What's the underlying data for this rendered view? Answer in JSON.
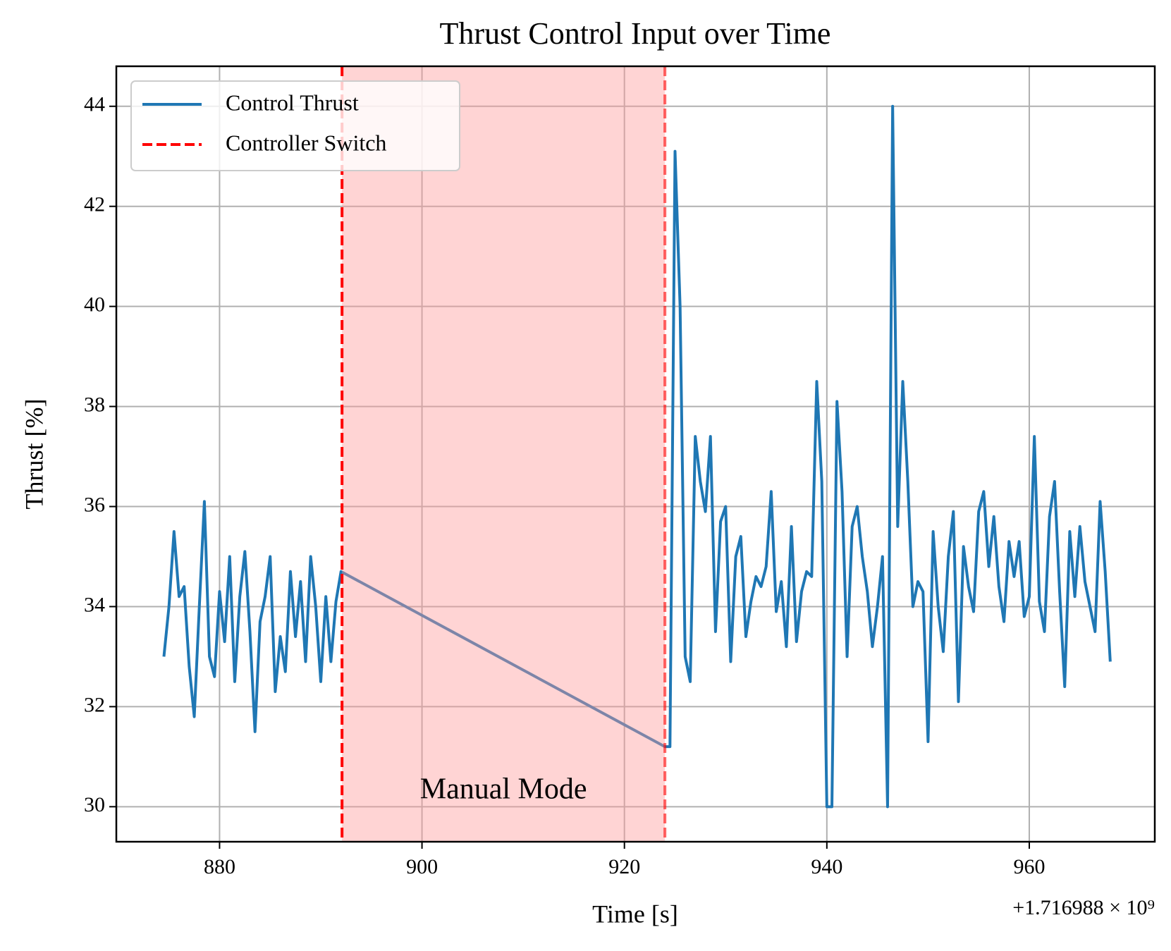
{
  "chart_data": {
    "type": "line",
    "title": "Thrust Control Input over Time",
    "xlabel": "Time [s]",
    "ylabel": "Thrust [%]",
    "offset_label": "+1.716988 × 10⁹",
    "x": [
      874.5,
      875,
      875.5,
      876,
      876.5,
      877,
      877.5,
      878,
      878.5,
      879,
      879.5,
      880,
      880.5,
      881,
      881.5,
      882,
      882.5,
      883,
      883.5,
      884,
      884.5,
      885,
      885.5,
      886,
      886.5,
      887,
      887.5,
      888,
      888.5,
      889,
      889.5,
      890,
      890.5,
      891,
      891.5,
      892,
      924,
      924.5,
      925,
      925.5,
      926,
      926.5,
      927,
      927.5,
      928,
      928.5,
      929,
      929.5,
      930,
      930.5,
      931,
      931.5,
      932,
      932.5,
      933,
      933.5,
      934,
      934.5,
      935,
      935.5,
      936,
      936.5,
      937,
      937.5,
      938,
      938.5,
      939,
      939.5,
      940,
      940.5,
      941,
      941.5,
      942,
      942.5,
      943,
      943.5,
      944,
      944.5,
      945,
      945.5,
      946,
      946.5,
      947,
      947.5,
      948,
      948.5,
      949,
      949.5,
      950,
      950.5,
      951,
      951.5,
      952,
      952.5,
      953,
      953.5,
      954,
      954.5,
      955,
      955.5,
      956,
      956.5,
      957,
      957.5,
      958,
      958.5,
      959,
      959.5,
      960,
      960.5,
      961,
      961.5,
      962,
      962.5,
      963,
      963.5,
      964,
      964.5,
      965,
      965.5,
      966,
      966.5,
      967,
      967.5,
      968
    ],
    "series": [
      {
        "name": "Control Thrust",
        "color": "#1f77b4",
        "values": [
          33.0,
          34.0,
          35.5,
          34.2,
          34.4,
          32.8,
          31.8,
          34.0,
          36.1,
          33.0,
          32.6,
          34.3,
          33.3,
          35.0,
          32.5,
          34.2,
          35.1,
          33.5,
          31.5,
          33.7,
          34.2,
          35.0,
          32.3,
          33.4,
          32.7,
          34.7,
          33.4,
          34.5,
          32.9,
          35.0,
          34.0,
          32.5,
          34.2,
          32.9,
          34.1,
          34.7,
          31.2,
          31.2,
          43.1,
          40.0,
          33.0,
          32.5,
          37.4,
          36.5,
          35.9,
          37.4,
          33.5,
          35.7,
          36.0,
          32.9,
          35.0,
          35.4,
          33.4,
          34.1,
          34.6,
          34.4,
          34.8,
          36.3,
          33.9,
          34.5,
          33.2,
          35.6,
          33.3,
          34.3,
          34.7,
          34.6,
          38.5,
          36.5,
          30.0,
          30.0,
          38.1,
          36.3,
          33.0,
          35.6,
          36.0,
          35.0,
          34.3,
          33.2,
          34.0,
          35.0,
          30.0,
          44.0,
          35.6,
          38.5,
          36.5,
          34.0,
          34.5,
          34.3,
          31.3,
          35.5,
          34.0,
          33.1,
          35.0,
          35.9,
          32.1,
          35.2,
          34.4,
          33.9,
          35.9,
          36.3,
          34.8,
          35.8,
          34.4,
          33.7,
          35.3,
          34.6,
          35.3,
          33.8,
          34.2,
          37.4,
          34.1,
          33.5,
          35.8,
          36.5,
          34.3,
          32.4,
          35.5,
          34.2,
          35.6,
          34.5,
          34.0,
          33.5,
          36.1,
          34.7,
          32.9
        ]
      }
    ],
    "switches": {
      "name": "Controller Switch",
      "color": "#ff0000",
      "x": [
        892.1,
        924.0
      ]
    },
    "shaded_region": {
      "label": "Manual Mode",
      "color": "#ff9999"
    },
    "xlim": [
      869.8,
      972.4
    ],
    "ylim": [
      29.3,
      44.8
    ],
    "xticks": [
      880,
      900,
      920,
      940,
      960
    ],
    "yticks": [
      30,
      32,
      34,
      36,
      38,
      40,
      42,
      44
    ],
    "grid": true,
    "legend": "upper left"
  }
}
